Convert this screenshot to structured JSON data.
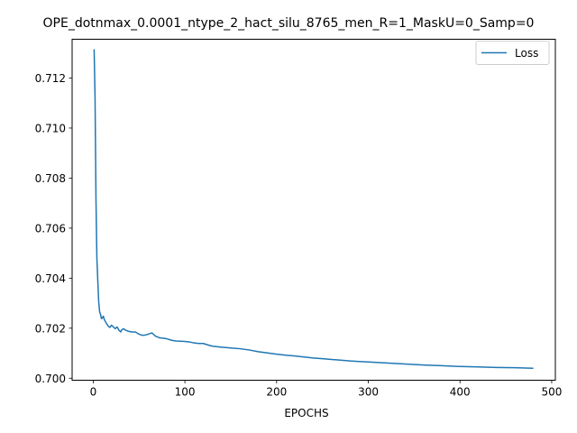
{
  "chart_data": {
    "type": "line",
    "title": "OPE_dotnmax_0.0001_ntype_2_hact_silu_8765_men_R=1_MaskU=0_Samp=0",
    "xlabel": "EPOCHS",
    "ylabel": "",
    "xlim": [
      -23,
      504
    ],
    "ylim": [
      0.69992,
      0.71355
    ],
    "xticks": [
      0,
      100,
      200,
      300,
      400,
      500
    ],
    "yticks": [
      0.7,
      0.702,
      0.704,
      0.706,
      0.708,
      0.71,
      0.712
    ],
    "ytick_labels": [
      "0.700",
      "0.702",
      "0.704",
      "0.706",
      "0.708",
      "0.710",
      "0.712"
    ],
    "grid": false,
    "legend_position": "top-right",
    "series": [
      {
        "name": "Loss",
        "color": "#1f77b4",
        "x": [
          1,
          2,
          3,
          4,
          5,
          6,
          7,
          8,
          9,
          10,
          11,
          12,
          14,
          16,
          18,
          20,
          22,
          24,
          26,
          28,
          30,
          31,
          33,
          35,
          38,
          42,
          46,
          50,
          53,
          56,
          60,
          64,
          68,
          72,
          76,
          80,
          85,
          90,
          95,
          100,
          105,
          110,
          115,
          120,
          125,
          130,
          140,
          150,
          160,
          170,
          180,
          190,
          200,
          210,
          220,
          230,
          240,
          250,
          260,
          270,
          280,
          290,
          300,
          320,
          340,
          360,
          380,
          400,
          420,
          440,
          460,
          480
        ],
        "values": [
          0.71315,
          0.7112,
          0.7072,
          0.7048,
          0.7039,
          0.70305,
          0.70265,
          0.70255,
          0.70238,
          0.70242,
          0.70248,
          0.70235,
          0.70222,
          0.7021,
          0.70203,
          0.70212,
          0.70205,
          0.70198,
          0.70205,
          0.70192,
          0.70185,
          0.70193,
          0.70198,
          0.70193,
          0.70188,
          0.70185,
          0.70185,
          0.70176,
          0.70172,
          0.70172,
          0.70176,
          0.70181,
          0.70168,
          0.70162,
          0.7016,
          0.70158,
          0.70152,
          0.70149,
          0.70148,
          0.70147,
          0.70145,
          0.70141,
          0.70139,
          0.70139,
          0.70133,
          0.70128,
          0.70124,
          0.70121,
          0.70118,
          0.70113,
          0.70106,
          0.70101,
          0.70096,
          0.70092,
          0.70089,
          0.70085,
          0.70081,
          0.70078,
          0.70075,
          0.70072,
          0.70069,
          0.70067,
          0.70065,
          0.70061,
          0.70057,
          0.70053,
          0.7005,
          0.70047,
          0.70045,
          0.70043,
          0.70042,
          0.7004
        ]
      }
    ]
  }
}
